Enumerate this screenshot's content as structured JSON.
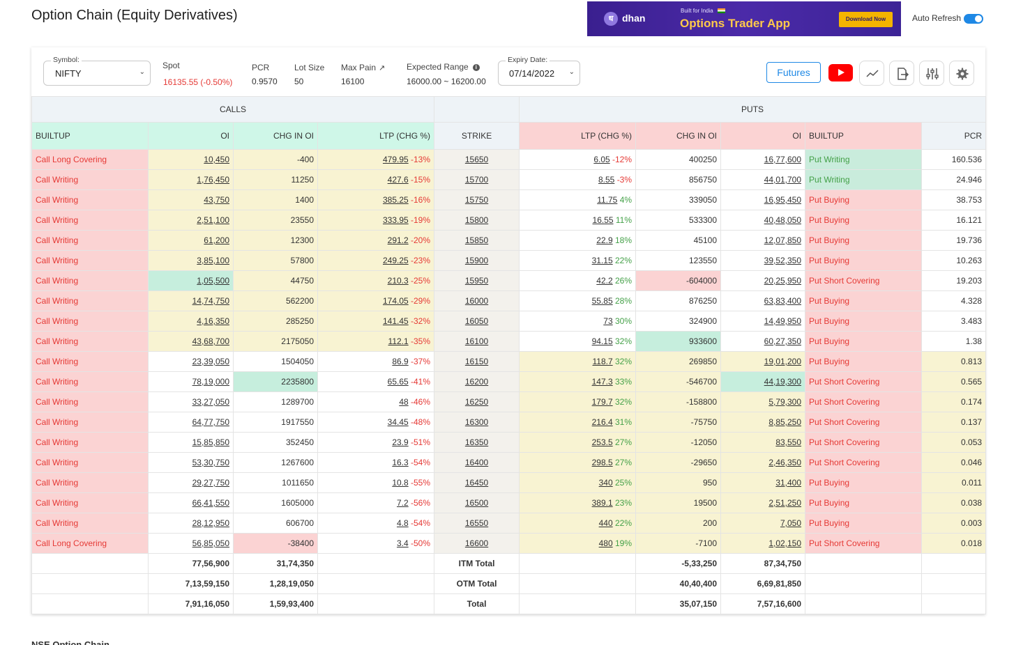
{
  "page": {
    "title": "Option Chain (Equity Derivatives)",
    "auto_refresh_label": "Auto Refresh",
    "auto_refresh_on": true,
    "footer_text": "NSE Option Chain"
  },
  "ad": {
    "brand": "dhan",
    "logo_glyph": "ध",
    "tagline_small": "Built for India",
    "headline": "Options Trader App",
    "cta": "Download Now"
  },
  "toolbar": {
    "symbol_label": "Symbol:",
    "symbol_value": "NIFTY",
    "spot_label": "Spot",
    "spot_value": "16135.55 (-0.50%)",
    "pcr_label": "PCR",
    "pcr_value": "0.9570",
    "lot_label": "Lot Size",
    "lot_value": "50",
    "maxpain_label": "Max Pain",
    "maxpain_value": "16100",
    "expected_label": "Expected Range",
    "expected_value": "16000.00 ~ 16200.00",
    "expiry_label": "Expiry Date:",
    "expiry_value": "07/14/2022",
    "futures_label": "Futures"
  },
  "table": {
    "group_calls": "CALLS",
    "group_puts": "PUTS",
    "headers": {
      "call_builtup": "BUILTUP",
      "call_oi": "OI",
      "call_chg": "CHG IN OI",
      "call_ltp": "LTP (CHG %)",
      "strike": "STRIKE",
      "put_ltp": "LTP (CHG %)",
      "put_chg": "CHG IN OI",
      "put_oi": "OI",
      "put_builtup": "BUILTUP",
      "pcr": "PCR"
    },
    "rows": [
      {
        "cb": "Call Long Covering",
        "coi": "10,450",
        "cchg": "-400",
        "cltp": "479.95",
        "cpct": "-13%",
        "strike": "15650",
        "pltp": "6.05",
        "ppct": "-12%",
        "pchg": "400250",
        "poi": "16,77,600",
        "pb": "Put Writing",
        "pcr": "160.536"
      },
      {
        "cb": "Call Writing",
        "coi": "1,76,450",
        "cchg": "11250",
        "cltp": "427.6",
        "cpct": "-15%",
        "strike": "15700",
        "pltp": "8.55",
        "ppct": "-3%",
        "pchg": "856750",
        "poi": "44,01,700",
        "pb": "Put Writing",
        "pcr": "24.946"
      },
      {
        "cb": "Call Writing",
        "coi": "43,750",
        "cchg": "1400",
        "cltp": "385.25",
        "cpct": "-16%",
        "strike": "15750",
        "pltp": "11.75",
        "ppct": "4%",
        "pchg": "339050",
        "poi": "16,95,450",
        "pb": "Put Buying",
        "pcr": "38.753"
      },
      {
        "cb": "Call Writing",
        "coi": "2,51,100",
        "cchg": "23550",
        "cltp": "333.95",
        "cpct": "-19%",
        "strike": "15800",
        "pltp": "16.55",
        "ppct": "11%",
        "pchg": "533300",
        "poi": "40,48,050",
        "pb": "Put Buying",
        "pcr": "16.121"
      },
      {
        "cb": "Call Writing",
        "coi": "61,200",
        "cchg": "12300",
        "cltp": "291.2",
        "cpct": "-20%",
        "strike": "15850",
        "pltp": "22.9",
        "ppct": "18%",
        "pchg": "45100",
        "poi": "12,07,850",
        "pb": "Put Buying",
        "pcr": "19.736"
      },
      {
        "cb": "Call Writing",
        "coi": "3,85,100",
        "cchg": "57800",
        "cltp": "249.25",
        "cpct": "-23%",
        "strike": "15900",
        "pltp": "31.15",
        "ppct": "22%",
        "pchg": "123550",
        "poi": "39,52,350",
        "pb": "Put Buying",
        "pcr": "10.263"
      },
      {
        "cb": "Call Writing",
        "coi": "1,05,500",
        "cchg": "44750",
        "cltp": "210.3",
        "cpct": "-25%",
        "strike": "15950",
        "pltp": "42.2",
        "ppct": "26%",
        "pchg": "-604000",
        "poi": "20,25,950",
        "pb": "Put Short Covering",
        "pcr": "19.203"
      },
      {
        "cb": "Call Writing",
        "coi": "14,74,750",
        "cchg": "562200",
        "cltp": "174.05",
        "cpct": "-29%",
        "strike": "16000",
        "pltp": "55.85",
        "ppct": "28%",
        "pchg": "876250",
        "poi": "63,83,400",
        "pb": "Put Buying",
        "pcr": "4.328"
      },
      {
        "cb": "Call Writing",
        "coi": "4,16,350",
        "cchg": "285250",
        "cltp": "141.45",
        "cpct": "-32%",
        "strike": "16050",
        "pltp": "73",
        "ppct": "30%",
        "pchg": "324900",
        "poi": "14,49,950",
        "pb": "Put Buying",
        "pcr": "3.483"
      },
      {
        "cb": "Call Writing",
        "coi": "43,68,700",
        "cchg": "2175050",
        "cltp": "112.1",
        "cpct": "-35%",
        "strike": "16100",
        "pltp": "94.15",
        "ppct": "32%",
        "pchg": "933600",
        "poi": "60,27,350",
        "pb": "Put Buying",
        "pcr": "1.38"
      },
      {
        "cb": "Call Writing",
        "coi": "23,39,050",
        "cchg": "1504050",
        "cltp": "86.9",
        "cpct": "-37%",
        "strike": "16150",
        "pltp": "118.7",
        "ppct": "32%",
        "pchg": "269850",
        "poi": "19,01,200",
        "pb": "Put Buying",
        "pcr": "0.813"
      },
      {
        "cb": "Call Writing",
        "coi": "78,19,000",
        "cchg": "2235800",
        "cltp": "65.65",
        "cpct": "-41%",
        "strike": "16200",
        "pltp": "147.3",
        "ppct": "33%",
        "pchg": "-546700",
        "poi": "44,19,300",
        "pb": "Put Short Covering",
        "pcr": "0.565"
      },
      {
        "cb": "Call Writing",
        "coi": "33,27,050",
        "cchg": "1289700",
        "cltp": "48",
        "cpct": "-46%",
        "strike": "16250",
        "pltp": "179.7",
        "ppct": "32%",
        "pchg": "-158800",
        "poi": "5,79,300",
        "pb": "Put Short Covering",
        "pcr": "0.174"
      },
      {
        "cb": "Call Writing",
        "coi": "64,77,750",
        "cchg": "1917550",
        "cltp": "34.45",
        "cpct": "-48%",
        "strike": "16300",
        "pltp": "216.4",
        "ppct": "31%",
        "pchg": "-75750",
        "poi": "8,85,250",
        "pb": "Put Short Covering",
        "pcr": "0.137"
      },
      {
        "cb": "Call Writing",
        "coi": "15,85,850",
        "cchg": "352450",
        "cltp": "23.9",
        "cpct": "-51%",
        "strike": "16350",
        "pltp": "253.5",
        "ppct": "27%",
        "pchg": "-12050",
        "poi": "83,550",
        "pb": "Put Short Covering",
        "pcr": "0.053"
      },
      {
        "cb": "Call Writing",
        "coi": "53,30,750",
        "cchg": "1267600",
        "cltp": "16.3",
        "cpct": "-54%",
        "strike": "16400",
        "pltp": "298.5",
        "ppct": "27%",
        "pchg": "-29650",
        "poi": "2,46,350",
        "pb": "Put Short Covering",
        "pcr": "0.046"
      },
      {
        "cb": "Call Writing",
        "coi": "29,27,750",
        "cchg": "1011650",
        "cltp": "10.8",
        "cpct": "-55%",
        "strike": "16450",
        "pltp": "340",
        "ppct": "25%",
        "pchg": "950",
        "poi": "31,400",
        "pb": "Put Buying",
        "pcr": "0.011"
      },
      {
        "cb": "Call Writing",
        "coi": "66,41,550",
        "cchg": "1605000",
        "cltp": "7.2",
        "cpct": "-56%",
        "strike": "16500",
        "pltp": "389.1",
        "ppct": "23%",
        "pchg": "19500",
        "poi": "2,51,250",
        "pb": "Put Buying",
        "pcr": "0.038"
      },
      {
        "cb": "Call Writing",
        "coi": "28,12,950",
        "cchg": "606700",
        "cltp": "4.8",
        "cpct": "-54%",
        "strike": "16550",
        "pltp": "440",
        "ppct": "22%",
        "pchg": "200",
        "poi": "7,050",
        "pb": "Put Buying",
        "pcr": "0.003"
      },
      {
        "cb": "Call Long Covering",
        "coi": "56,85,050",
        "cchg": "-38400",
        "cltp": "3.4",
        "cpct": "-50%",
        "strike": "16600",
        "pltp": "480",
        "ppct": "19%",
        "pchg": "-7100",
        "poi": "1,02,150",
        "pb": "Put Short Covering",
        "pcr": "0.018"
      }
    ],
    "totals": [
      {
        "label": "ITM Total",
        "coi": "77,56,900",
        "cchg": "31,74,350",
        "pchg": "-5,33,250",
        "poi": "87,34,750"
      },
      {
        "label": "OTM Total",
        "coi": "7,13,59,150",
        "cchg": "1,28,19,050",
        "pchg": "40,40,400",
        "poi": "6,69,81,850"
      },
      {
        "label": "Total",
        "coi": "7,91,16,050",
        "cchg": "1,59,93,400",
        "pchg": "35,07,150",
        "poi": "7,57,16,600"
      }
    ]
  },
  "colors": {
    "call_header": "#cff7e8",
    "put_header": "#fbd3d3",
    "itm_yellow": "#f8f3d2",
    "highlight_green": "#c9ecdc",
    "negative": "#e53935",
    "positive": "#43a047",
    "accent": "#1e88e5"
  },
  "icons": [
    "youtube-icon",
    "chart-line-icon",
    "export-icon",
    "filter-sliders-icon",
    "settings-gear-icon",
    "external-link-icon",
    "info-icon",
    "chevron-down-icon"
  ]
}
